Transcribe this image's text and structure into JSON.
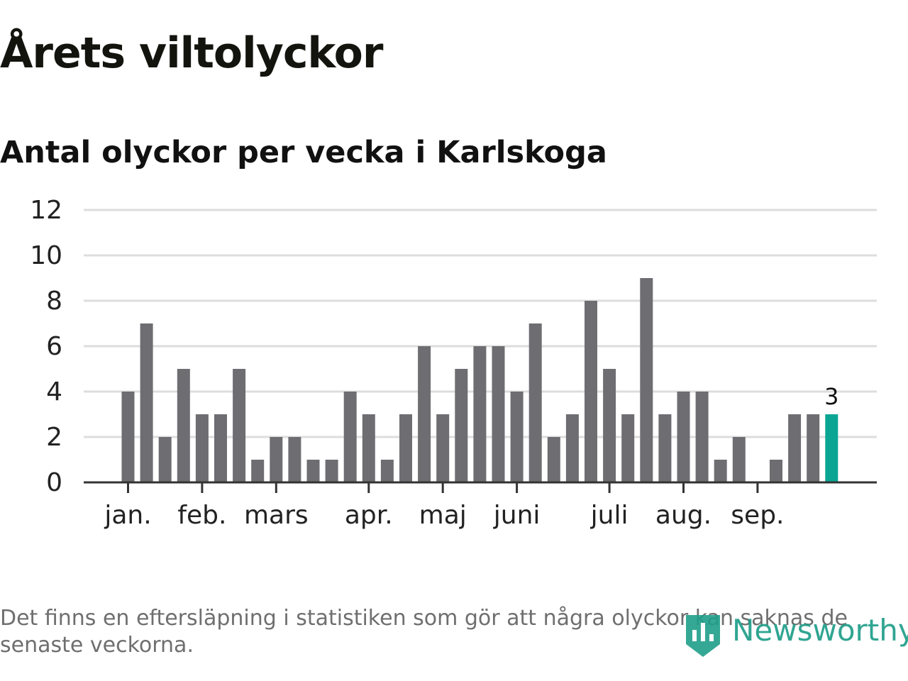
{
  "header": {
    "title": "Årets viltolyckor",
    "subtitle": "Antal olyckor per vecka i Karlskoga"
  },
  "footer": {
    "note": "Det finns en eftersläpning i statistiken som gör att några olyckor kan saknas de senaste veckorna.",
    "brand": "Newsworthy",
    "brand_icon": "bar-chart-shield-icon"
  },
  "colors": {
    "bar": "#6e6d72",
    "highlight": "#0aa593",
    "grid": "#dddddd",
    "axis": "#333333",
    "brand": "#1f9e89"
  },
  "chart_data": {
    "type": "bar",
    "title": "",
    "xlabel": "",
    "ylabel": "",
    "ylim": [
      0,
      12
    ],
    "yticks": [
      0,
      2,
      4,
      6,
      8,
      10,
      12
    ],
    "grid": true,
    "values": [
      4,
      7,
      2,
      5,
      3,
      3,
      5,
      1,
      2,
      2,
      1,
      1,
      4,
      3,
      1,
      3,
      6,
      3,
      5,
      6,
      6,
      4,
      7,
      2,
      3,
      8,
      5,
      3,
      9,
      3,
      4,
      4,
      1,
      2,
      0,
      1,
      3,
      3,
      3
    ],
    "month_labels": [
      {
        "label": "jan.",
        "week_index": 0
      },
      {
        "label": "feb.",
        "week_index": 4
      },
      {
        "label": "mars",
        "week_index": 8
      },
      {
        "label": "apr.",
        "week_index": 13
      },
      {
        "label": "maj",
        "week_index": 17
      },
      {
        "label": "juni",
        "week_index": 21
      },
      {
        "label": "juli",
        "week_index": 26
      },
      {
        "label": "aug.",
        "week_index": 30
      },
      {
        "label": "sep.",
        "week_index": 34
      }
    ],
    "highlight_index": 38,
    "data_labels": [
      {
        "index": 38,
        "text": "3"
      }
    ]
  }
}
